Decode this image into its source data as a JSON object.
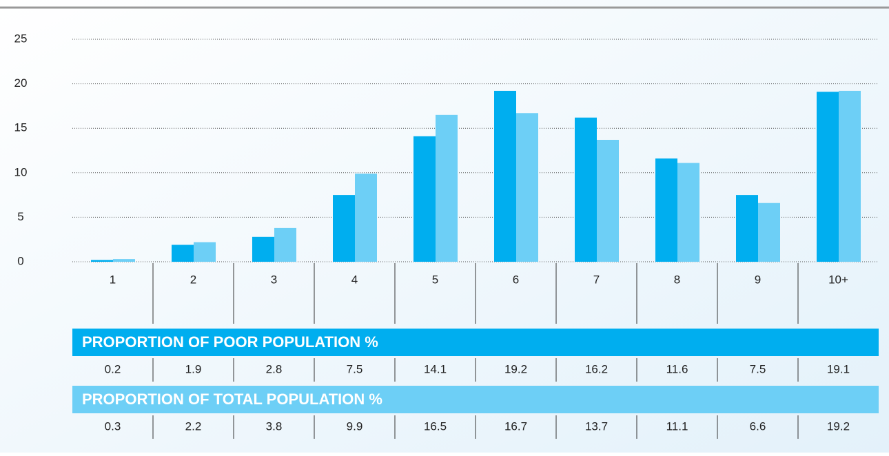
{
  "chart_data": {
    "type": "bar",
    "categories": [
      "1",
      "2",
      "3",
      "4",
      "5",
      "6",
      "7",
      "8",
      "9",
      "10+"
    ],
    "series": [
      {
        "name": "PROPORTION OF POOR POPULATION %",
        "color": "#00aeef",
        "values": [
          0.2,
          1.9,
          2.8,
          7.5,
          14.1,
          19.2,
          16.2,
          11.6,
          7.5,
          19.1
        ]
      },
      {
        "name": "PROPORTION OF TOTAL POPULATION %",
        "color": "#6dcff6",
        "values": [
          0.3,
          2.2,
          3.8,
          9.9,
          16.5,
          16.7,
          13.7,
          11.1,
          6.6,
          19.2
        ]
      }
    ],
    "ylim": [
      0,
      25
    ],
    "yticks": [
      0,
      5,
      10,
      15,
      20,
      25
    ],
    "grid": true
  }
}
